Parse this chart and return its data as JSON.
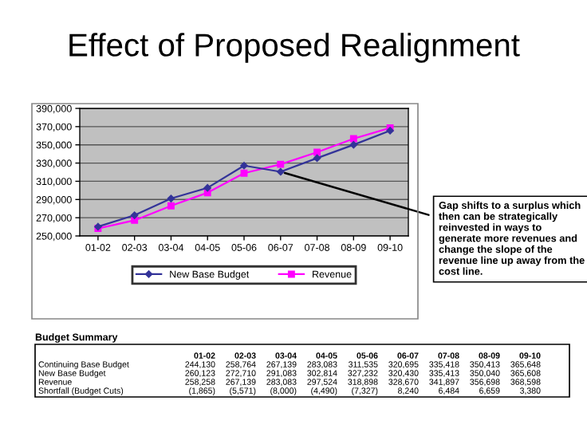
{
  "chart_data": {
    "type": "line",
    "title": "Effect of Proposed Realignment",
    "categories": [
      "01-02",
      "02-03",
      "03-04",
      "04-05",
      "05-06",
      "06-07",
      "07-08",
      "08-09",
      "09-10"
    ],
    "series": [
      {
        "name": "New Base Budget",
        "color": "#333399",
        "marker": "diamond",
        "values": [
          260123,
          272710,
          291083,
          302814,
          327232,
          320430,
          335413,
          350040,
          365608
        ]
      },
      {
        "name": "Revenue",
        "color": "#ff00ff",
        "marker": "square",
        "values": [
          258258,
          267139,
          283083,
          297524,
          318898,
          328670,
          341897,
          356698,
          368598
        ]
      }
    ],
    "ylim": [
      250000,
      390000
    ],
    "yticks": [
      {
        "value": 250000,
        "label": "250,000"
      },
      {
        "value": 270000,
        "label": "270,000"
      },
      {
        "value": 290000,
        "label": "290,000"
      },
      {
        "value": 310000,
        "label": "310,000"
      },
      {
        "value": 330000,
        "label": "330,000"
      },
      {
        "value": 350000,
        "label": "350,000"
      },
      {
        "value": 370000,
        "label": "370,000"
      },
      {
        "value": 390000,
        "label": "390,000"
      }
    ],
    "grid": "y",
    "legend": "bottom",
    "line_style": "solid",
    "annotations": [
      {
        "text": "Gap shifts to a surplus which then can be strategically reinvested in ways to generate more revenues and change the slope of the revenue line up away from the cost line.",
        "x": "06-07",
        "y": 320430
      },
      "Budget Summary",
      "\t01-02\t02-03\t03-04\t04-05\t05-06\t06-07\t07-08\t08-09\t09-10",
      "Continuing Base Budget\t244,130\t258,764\t267,139\t283,083\t311,535\t320,695\t335,418\t350,413\t365,648",
      "New Base Budget\t260,123\t272,710\t291,083\t302,814\t327,232\t320,430\t335,413\t350,040\t365,608",
      "Revenue\t258,258\t267,139\t283,083\t297,524\t318,898\t328,670\t341,897\t356,698\t368,598",
      "Shortfall (Budget Cuts)\t(1,865)\t(5,571)\t(8,000)\t(4,490)\t(7,327)\t8,240\t6,484\t6,659\t3,380"
    ]
  }
}
